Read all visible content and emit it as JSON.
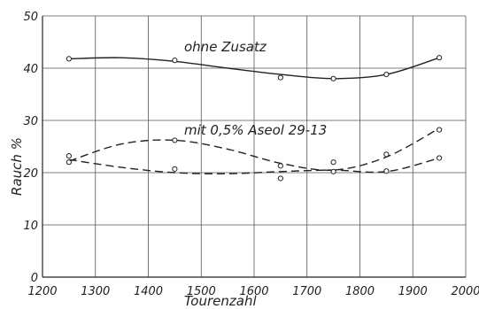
{
  "chart_data": {
    "type": "line",
    "title": "",
    "xlabel": "Tourenzahl",
    "ylabel": "Rauch %",
    "xlim": [
      1200,
      2000
    ],
    "ylim": [
      0,
      50
    ],
    "xticks": [
      1200,
      1300,
      1400,
      1500,
      1600,
      1700,
      1800,
      1900,
      2000
    ],
    "yticks": [
      0,
      10,
      20,
      30,
      40,
      50
    ],
    "grid": true,
    "annotations": [
      {
        "text": "ohne Zusatz"
      },
      {
        "text": "mit 0,5% Aseol 29-13"
      }
    ],
    "series": [
      {
        "style": "solid",
        "points": [
          {
            "x": 1250,
            "y": 41.8
          },
          {
            "x": 1450,
            "y": 41.5
          },
          {
            "x": 1650,
            "y": 38.2
          },
          {
            "x": 1750,
            "y": 38.0
          },
          {
            "x": 1850,
            "y": 38.8
          },
          {
            "x": 1950,
            "y": 42.0
          }
        ],
        "curve": [
          {
            "x": 1250,
            "y": 41.8
          },
          {
            "x": 1350,
            "y": 42.0
          },
          {
            "x": 1450,
            "y": 41.3
          },
          {
            "x": 1550,
            "y": 40.0
          },
          {
            "x": 1650,
            "y": 38.8
          },
          {
            "x": 1750,
            "y": 38.0
          },
          {
            "x": 1850,
            "y": 38.8
          },
          {
            "x": 1950,
            "y": 42.0
          }
        ]
      },
      {
        "style": "dashed",
        "points": [
          {
            "x": 1250,
            "y": 23.2
          },
          {
            "x": 1450,
            "y": 26.2
          },
          {
            "x": 1650,
            "y": 21.3
          },
          {
            "x": 1750,
            "y": 20.2
          },
          {
            "x": 1850,
            "y": 23.5
          },
          {
            "x": 1950,
            "y": 28.2
          }
        ],
        "curve": [
          {
            "x": 1250,
            "y": 22.2
          },
          {
            "x": 1350,
            "y": 25.5
          },
          {
            "x": 1450,
            "y": 26.2
          },
          {
            "x": 1550,
            "y": 24.5
          },
          {
            "x": 1650,
            "y": 21.8
          },
          {
            "x": 1750,
            "y": 20.5
          },
          {
            "x": 1850,
            "y": 23.0
          },
          {
            "x": 1950,
            "y": 28.5
          }
        ]
      },
      {
        "style": "dashed",
        "points": [
          {
            "x": 1250,
            "y": 22.0
          },
          {
            "x": 1450,
            "y": 20.7
          },
          {
            "x": 1650,
            "y": 18.9
          },
          {
            "x": 1750,
            "y": 22.0
          },
          {
            "x": 1850,
            "y": 20.3
          },
          {
            "x": 1950,
            "y": 22.8
          }
        ],
        "curve": [
          {
            "x": 1250,
            "y": 22.5
          },
          {
            "x": 1350,
            "y": 21.0
          },
          {
            "x": 1450,
            "y": 20.0
          },
          {
            "x": 1550,
            "y": 19.8
          },
          {
            "x": 1650,
            "y": 20.2
          },
          {
            "x": 1750,
            "y": 20.5
          },
          {
            "x": 1850,
            "y": 20.2
          },
          {
            "x": 1950,
            "y": 22.8
          }
        ]
      }
    ]
  }
}
